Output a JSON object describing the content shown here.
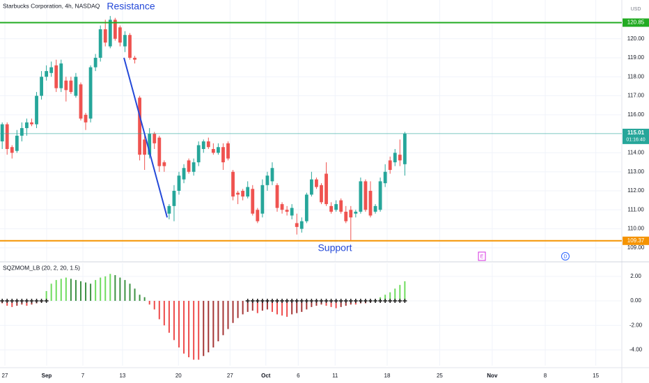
{
  "chart_data": [
    {
      "type": "candlestick",
      "title": "Starbucks Corporation, 4h, NASDAQ",
      "currency": "USD",
      "countdown": "01:16:40",
      "grid": true,
      "up_color": "#26a69a",
      "down_color": "#ef5350",
      "xlim": [
        -0.45,
        126.2
      ],
      "ylim": [
        108.3,
        122.04
      ],
      "xticks": [
        {
          "value": 0.54,
          "label": "27"
        },
        {
          "value": 9.05,
          "label": "Sep"
        },
        {
          "value": 16.43,
          "label": "7"
        },
        {
          "value": 24.5,
          "label": "13"
        },
        {
          "value": 35.9,
          "label": "20"
        },
        {
          "value": 46.4,
          "label": "27"
        },
        {
          "value": 53.7,
          "label": "Oct"
        },
        {
          "value": 60.3,
          "label": "6"
        },
        {
          "value": 67.8,
          "label": "11"
        },
        {
          "value": 78.4,
          "label": "18"
        },
        {
          "value": 89.1,
          "label": "25"
        },
        {
          "value": 99.8,
          "label": "Nov"
        },
        {
          "value": 110.6,
          "label": "8"
        },
        {
          "value": 120.9,
          "label": "15"
        }
      ],
      "yticks": [
        {
          "value": 109,
          "label": "109.00"
        },
        {
          "value": 110,
          "label": "110.00"
        },
        {
          "value": 111,
          "label": "111.00"
        },
        {
          "value": 112,
          "label": "112.00"
        },
        {
          "value": 113,
          "label": "113.00"
        },
        {
          "value": 114,
          "label": "114.00"
        },
        {
          "value": 116,
          "label": "116.00"
        },
        {
          "value": 117,
          "label": "117.00"
        },
        {
          "value": 118,
          "label": "118.00"
        },
        {
          "value": 119,
          "label": "119.00"
        },
        {
          "value": 120,
          "label": "120.00"
        }
      ],
      "levels": [
        {
          "name": "Resistance",
          "value": 120.85,
          "color": "#22ab22"
        },
        {
          "name": "Support",
          "value": 109.37,
          "color": "#f59300"
        }
      ],
      "trendline": {
        "color": "#2449d8",
        "x": [
          24.8,
          33.6
        ],
        "y": [
          119.0,
          110.6
        ]
      },
      "events": [
        {
          "label": "E",
          "x": 97.7,
          "color": "#d42ee0"
        },
        {
          "label": "D",
          "x": 114.7,
          "color": "#2962ff"
        }
      ],
      "series": {
        "open": [
          114.6,
          115.5,
          114.3,
          114.1,
          114.9,
          115.3,
          115.6,
          115.5,
          117.0,
          118.0,
          118.2,
          118.6,
          117.4,
          117.8,
          117.8,
          117.0,
          117.6,
          116.0,
          115.8,
          118.5,
          119.0,
          120.5,
          119.6,
          121.0,
          120.6,
          119.6,
          120.2,
          119.0,
          116.9,
          114.7,
          113.9,
          115.0,
          114.8,
          113.5,
          110.8,
          111.2,
          112.0,
          112.6,
          113.6,
          113.0,
          113.5,
          114.2,
          114.6,
          114.2,
          114.0,
          114.3,
          114.5,
          113.0,
          111.9,
          112.0,
          111.7,
          112.1,
          111.0,
          110.8,
          112.3,
          112.5,
          112.3,
          111.3,
          111.0,
          110.7,
          110.3,
          110.0,
          110.4,
          111.8,
          112.6,
          112.3,
          112.9,
          111.2,
          111.0,
          111.5,
          110.9,
          111.0,
          110.8,
          110.9,
          112.5,
          112.0,
          110.9,
          111.0,
          112.4,
          113.6,
          113.5,
          113.9,
          113.4
        ],
        "high": [
          115.6,
          115.6,
          114.4,
          115.2,
          115.6,
          115.8,
          115.8,
          117.2,
          118.3,
          118.6,
          118.8,
          118.9,
          118.9,
          118.0,
          118.0,
          118.2,
          117.7,
          116.1,
          118.6,
          119.2,
          120.7,
          121.0,
          121.2,
          121.1,
          120.7,
          120.4,
          120.3,
          119.1,
          117.0,
          115.0,
          115.3,
          115.1,
          114.9,
          113.6,
          111.3,
          112.3,
          113.0,
          113.4,
          113.7,
          113.7,
          114.6,
          114.7,
          114.8,
          114.5,
          114.5,
          114.5,
          114.6,
          113.1,
          112.0,
          112.1,
          112.5,
          112.3,
          111.1,
          112.6,
          113.0,
          113.5,
          112.4,
          111.4,
          111.2,
          111.3,
          110.8,
          110.6,
          111.9,
          113.0,
          112.7,
          112.4,
          113.5,
          111.4,
          111.5,
          111.6,
          111.2,
          111.2,
          111.0,
          112.7,
          112.6,
          112.5,
          111.3,
          112.7,
          113.4,
          113.8,
          114.2,
          114.7,
          115.1
        ],
        "low": [
          114.2,
          113.9,
          113.7,
          114.0,
          114.6,
          114.9,
          115.4,
          115.3,
          116.8,
          117.8,
          118.0,
          117.2,
          117.2,
          116.7,
          117.1,
          116.9,
          115.7,
          115.2,
          115.6,
          118.3,
          118.8,
          119.6,
          119.5,
          119.9,
          119.6,
          119.3,
          118.9,
          118.7,
          113.6,
          113.1,
          113.7,
          114.2,
          113.0,
          113.0,
          110.5,
          110.4,
          111.8,
          112.4,
          112.9,
          112.8,
          113.3,
          114.0,
          114.2,
          113.9,
          113.9,
          113.1,
          113.6,
          111.5,
          111.3,
          111.5,
          111.6,
          110.7,
          110.3,
          110.6,
          112.0,
          112.3,
          110.9,
          110.8,
          110.7,
          110.5,
          109.7,
          109.8,
          110.3,
          111.7,
          112.1,
          111.3,
          111.2,
          110.8,
          110.9,
          110.8,
          110.3,
          109.4,
          110.6,
          110.8,
          110.9,
          110.6,
          110.8,
          110.9,
          112.2,
          112.9,
          113.3,
          113.3,
          112.8
        ],
        "close": [
          115.5,
          114.2,
          114.0,
          114.9,
          115.3,
          115.6,
          115.5,
          117.0,
          118.0,
          118.3,
          118.5,
          117.4,
          118.7,
          117.3,
          117.2,
          118.0,
          115.8,
          115.6,
          118.5,
          119.0,
          120.5,
          119.8,
          121.0,
          120.0,
          119.8,
          120.2,
          119.0,
          118.9,
          113.9,
          113.9,
          115.0,
          114.5,
          113.3,
          113.3,
          111.2,
          112.0,
          112.8,
          113.2,
          113.0,
          113.5,
          114.4,
          114.6,
          114.3,
          114.0,
          114.3,
          113.5,
          113.7,
          111.7,
          111.8,
          111.7,
          112.2,
          110.8,
          110.4,
          112.3,
          112.8,
          113.2,
          111.1,
          111.0,
          110.9,
          111.1,
          110.1,
          110.4,
          111.8,
          112.6,
          112.2,
          111.4,
          111.3,
          110.9,
          111.3,
          110.9,
          110.4,
          110.6,
          110.9,
          112.5,
          111.0,
          110.7,
          111.2,
          112.5,
          113.0,
          113.1,
          114.0,
          113.6,
          115.01
        ]
      }
    },
    {
      "type": "histogram",
      "title": "SQZMOM_LB (20, 2, 20, 1.5)",
      "grid": true,
      "xlim": [
        -0.45,
        126.2
      ],
      "ylim": [
        -5.28,
        3.07
      ],
      "yticks": [
        {
          "value": 2,
          "label": "2.00"
        },
        {
          "value": 0,
          "label": "0.00"
        },
        {
          "value": -2,
          "label": "-2.00"
        },
        {
          "value": -4,
          "label": "-4.00"
        }
      ],
      "colors": {
        "pos_up": "#6fdc5e",
        "pos_down": "#3d9142",
        "neg_down": "#ee4b4b",
        "neg_up": "#a33434"
      },
      "squeeze_color": "#222222",
      "values": [
        -0.2,
        -0.4,
        -0.5,
        -0.4,
        -0.3,
        -0.4,
        -0.3,
        -0.2,
        -0.1,
        0.8,
        1.4,
        1.7,
        1.8,
        1.9,
        1.8,
        1.7,
        1.6,
        1.5,
        1.4,
        1.7,
        1.9,
        2.0,
        2.2,
        2.1,
        1.9,
        1.7,
        1.4,
        1.0,
        0.5,
        0.3,
        -0.3,
        -0.7,
        -1.5,
        -2.0,
        -2.6,
        -3.2,
        -3.8,
        -4.3,
        -4.6,
        -4.8,
        -4.8,
        -4.5,
        -4.2,
        -3.8,
        -3.3,
        -2.8,
        -2.3,
        -1.8,
        -1.4,
        -1.1,
        -0.9,
        -0.8,
        -1.0,
        -0.8,
        -0.7,
        -0.9,
        -1.1,
        -1.2,
        -1.3,
        -1.1,
        -1.0,
        -0.9,
        -0.7,
        -0.5,
        -0.4,
        -0.3,
        -0.4,
        -0.5,
        -0.6,
        -0.5,
        -0.4,
        -0.3,
        -0.3,
        -0.2,
        -0.2,
        -0.1,
        0.1,
        0.3,
        0.5,
        0.7,
        1.0,
        1.3,
        1.6
      ],
      "squeeze": [
        true,
        true,
        true,
        true,
        true,
        true,
        true,
        true,
        true,
        true,
        false,
        false,
        false,
        false,
        false,
        false,
        false,
        false,
        false,
        false,
        false,
        false,
        false,
        false,
        false,
        false,
        false,
        false,
        false,
        false,
        false,
        false,
        false,
        false,
        false,
        false,
        false,
        false,
        false,
        false,
        false,
        false,
        false,
        false,
        false,
        false,
        false,
        false,
        false,
        false,
        true,
        true,
        true,
        true,
        true,
        true,
        true,
        true,
        true,
        true,
        true,
        true,
        true,
        true,
        true,
        true,
        true,
        true,
        true,
        true,
        true,
        true,
        true,
        true,
        true,
        true,
        true,
        true,
        true,
        true,
        true,
        true,
        true
      ]
    }
  ]
}
